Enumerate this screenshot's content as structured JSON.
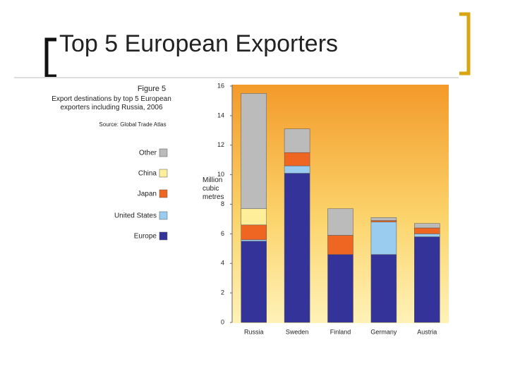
{
  "slide_title": "Top 5 European Exporters",
  "chart_data": {
    "type": "stacked_bar",
    "figure_label": "Figure 5",
    "title": "Export destinations by top 5 European exporters including Russia, 2006",
    "source": "Source: Global Trade Atlas",
    "y_label": "Million cubic metres",
    "categories": [
      "Russia",
      "Sweden",
      "Finland",
      "Germany",
      "Austria"
    ],
    "series": [
      {
        "name": "Europe",
        "color": "#333399",
        "values": [
          5.5,
          10.1,
          4.6,
          4.6,
          5.8
        ]
      },
      {
        "name": "United States",
        "color": "#99ccee",
        "values": [
          0.1,
          0.5,
          0,
          2.2,
          0.2
        ]
      },
      {
        "name": "Japan",
        "color": "#ee6622",
        "values": [
          1.0,
          0.9,
          1.3,
          0.1,
          0.4
        ]
      },
      {
        "name": "China",
        "color": "#ffee99",
        "values": [
          1.1,
          0,
          0,
          0,
          0
        ]
      },
      {
        "name": "Other",
        "color": "#bbbbbb",
        "values": [
          7.8,
          1.6,
          1.8,
          0.2,
          0.3
        ]
      }
    ],
    "ylim": [
      0,
      16
    ],
    "yticks": [
      0,
      2,
      4,
      6,
      8,
      10,
      12,
      14,
      16
    ]
  }
}
